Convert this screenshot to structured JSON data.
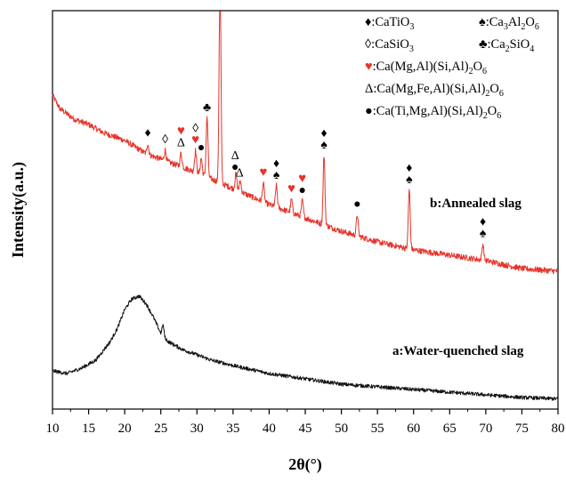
{
  "chart_data": {
    "type": "line",
    "xlabel": "2θ(°)",
    "ylabel": "Intensity(a.u.)",
    "xlim": [
      10,
      80
    ],
    "xticks": [
      10,
      15,
      20,
      25,
      30,
      35,
      40,
      45,
      50,
      55,
      60,
      65,
      70,
      75,
      80
    ],
    "grid": false,
    "legend_position": "top-right",
    "colors": {
      "annealed": "#e8332a",
      "quenched": "#111111",
      "heart": "#e8332a",
      "marker": "#000000"
    },
    "series": [
      {
        "key": "annealed",
        "name": "b:Annealed slag",
        "baseline": [
          [
            10,
            86
          ],
          [
            11,
            81
          ],
          [
            13,
            77
          ],
          [
            15,
            75
          ],
          [
            17,
            72
          ],
          [
            20,
            69
          ],
          [
            23,
            64
          ],
          [
            26,
            61
          ],
          [
            30,
            57
          ],
          [
            35,
            51
          ],
          [
            40,
            45
          ],
          [
            45,
            40
          ],
          [
            50,
            35
          ],
          [
            55,
            31
          ],
          [
            60,
            28
          ],
          [
            65,
            26
          ],
          [
            70,
            24
          ],
          [
            75,
            21
          ],
          [
            80,
            20
          ]
        ],
        "peaks": [
          {
            "x": 23.2,
            "h": 4
          },
          {
            "x": 25.6,
            "h": 4
          },
          {
            "x": 27.8,
            "h": 5
          },
          {
            "x": 29.8,
            "h": 8
          },
          {
            "x": 30.6,
            "h": 6
          },
          {
            "x": 31.4,
            "h": 22
          },
          {
            "x": 33.2,
            "h": 75
          },
          {
            "x": 35.4,
            "h": 6
          },
          {
            "x": 36.0,
            "h": 4
          },
          {
            "x": 39.2,
            "h": 7
          },
          {
            "x": 41.0,
            "h": 8
          },
          {
            "x": 43.1,
            "h": 5
          },
          {
            "x": 44.6,
            "h": 6
          },
          {
            "x": 47.6,
            "h": 26
          },
          {
            "x": 52.2,
            "h": 8
          },
          {
            "x": 59.4,
            "h": 22
          },
          {
            "x": 69.6,
            "h": 6
          }
        ]
      },
      {
        "key": "quenched",
        "name": "a:Water-quenched slag",
        "baseline": [
          [
            10,
            11
          ],
          [
            12,
            10
          ],
          [
            14,
            12
          ],
          [
            16,
            15
          ],
          [
            18,
            22
          ],
          [
            19,
            27
          ],
          [
            20,
            34
          ],
          [
            21,
            38
          ],
          [
            22,
            39
          ],
          [
            23,
            36
          ],
          [
            24,
            31
          ],
          [
            25,
            25
          ],
          [
            26,
            22
          ],
          [
            28,
            19
          ],
          [
            30,
            17
          ],
          [
            32,
            15
          ],
          [
            35,
            13
          ],
          [
            40,
            10
          ],
          [
            45,
            8
          ],
          [
            50,
            6
          ],
          [
            55,
            5
          ],
          [
            60,
            4
          ],
          [
            65,
            3
          ],
          [
            70,
            2
          ],
          [
            75,
            1
          ],
          [
            80,
            0.5
          ]
        ],
        "peaks": [
          {
            "x": 25.3,
            "h": 4
          }
        ]
      }
    ],
    "legend": [
      {
        "symbol": "♦",
        "symbol_color": "#000000",
        "formula": [
          "CaTiO",
          "3",
          ""
        ]
      },
      {
        "symbol": "♠",
        "symbol_color": "#000000",
        "formula": [
          "Ca",
          "3",
          "Al",
          "2",
          "O",
          "6",
          ""
        ]
      },
      {
        "symbol": "◊",
        "symbol_color": "#000000",
        "formula": [
          "CaSiO",
          "3",
          ""
        ]
      },
      {
        "symbol": "♣",
        "symbol_color": "#000000",
        "formula": [
          "Ca",
          "2",
          "SiO",
          "4",
          ""
        ]
      },
      {
        "symbol": "♥",
        "symbol_color": "#e8332a",
        "formula": [
          "Ca(Mg,Al)(Si,Al)",
          "2",
          "O",
          "6",
          ""
        ]
      },
      {
        "symbol": "Δ",
        "symbol_color": "#000000",
        "formula": [
          "Ca(Mg,Fe,Al)(Si,Al)",
          "2",
          "O",
          "6",
          ""
        ]
      },
      {
        "symbol": "●",
        "symbol_color": "#000000",
        "formula": [
          "Ca(Ti,Mg,Al)(Si,Al)",
          "2",
          "O",
          "6",
          ""
        ]
      }
    ],
    "annotations": [
      {
        "x": 23.2,
        "symbols": [
          "♦"
        ]
      },
      {
        "x": 25.6,
        "symbols": [
          "◊"
        ]
      },
      {
        "x": 27.8,
        "symbols": [
          "♥",
          "Δ"
        ]
      },
      {
        "x": 29.8,
        "symbols": [
          "◊",
          "♥"
        ]
      },
      {
        "x": 30.6,
        "symbols": [
          "●"
        ]
      },
      {
        "x": 31.4,
        "symbols": [
          "♣"
        ]
      },
      {
        "x": 33.2,
        "symbols": [
          "♦",
          "♠"
        ]
      },
      {
        "x": 35.3,
        "symbols": [
          "Δ",
          "●"
        ]
      },
      {
        "x": 35.9,
        "symbols": [
          "Δ"
        ]
      },
      {
        "x": 39.2,
        "symbols": [
          "♥"
        ]
      },
      {
        "x": 41.0,
        "symbols": [
          "♦",
          "♠"
        ]
      },
      {
        "x": 43.1,
        "symbols": [
          "♥"
        ]
      },
      {
        "x": 44.6,
        "symbols": [
          "♥",
          "●"
        ]
      },
      {
        "x": 47.6,
        "symbols": [
          "♦",
          "♠"
        ]
      },
      {
        "x": 52.2,
        "symbols": [
          "●"
        ]
      },
      {
        "x": 59.4,
        "symbols": [
          "♦",
          "♠"
        ]
      },
      {
        "x": 69.6,
        "symbols": [
          "♦",
          "♠"
        ]
      }
    ]
  }
}
